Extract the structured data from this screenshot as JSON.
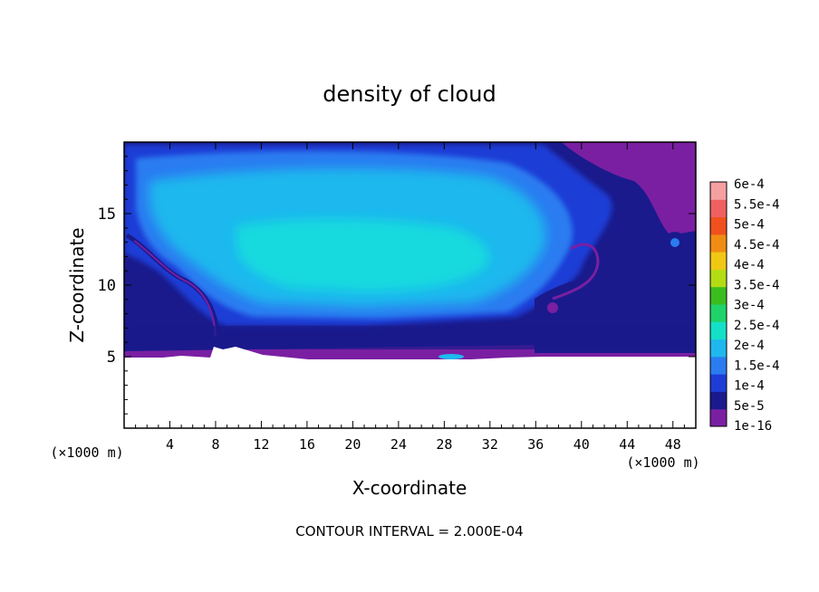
{
  "chart_data": {
    "type": "heatmap",
    "title": "density of cloud",
    "xlabel": "X-coordinate",
    "ylabel": "Z-coordinate",
    "x_unit_label": "(×1000 m)",
    "x_unit_label_right": "(×1000 m)",
    "footer": "CONTOUR INTERVAL = 2.000E-04",
    "xlim": [
      0,
      50
    ],
    "ylim": [
      0,
      20
    ],
    "x_ticks": [
      4,
      8,
      12,
      16,
      20,
      24,
      28,
      32,
      36,
      40,
      44,
      48
    ],
    "x_tick_labels": [
      "4",
      "8",
      "12",
      "16",
      "20",
      "24",
      "28",
      "32",
      "36",
      "40",
      "44",
      "48"
    ],
    "y_ticks": [
      5,
      10,
      15
    ],
    "y_tick_labels": [
      "5",
      "10",
      "15"
    ],
    "colorbar": {
      "labels": [
        "1e-16",
        "5e-5",
        "1e-4",
        "1.5e-4",
        "2e-4",
        "2.5e-4",
        "3e-4",
        "3.5e-4",
        "4e-4",
        "4.5e-4",
        "5e-4",
        "5.5e-4",
        "6e-4"
      ],
      "colors": [
        "#7a1fa2",
        "#1a1a8c",
        "#1e3cd6",
        "#2a7cf0",
        "#1fb8ee",
        "#14e0c8",
        "#1fd36a",
        "#3bbd1e",
        "#b4dc14",
        "#f0c814",
        "#f08c14",
        "#f0501e",
        "#f06060",
        "#f5a0a0"
      ]
    },
    "field_description": "cloud density in lower-right purple band near z≈5, main blue/cyan cloud body from z≈5 to z≈19.5",
    "cloud_base_z": 5
  }
}
